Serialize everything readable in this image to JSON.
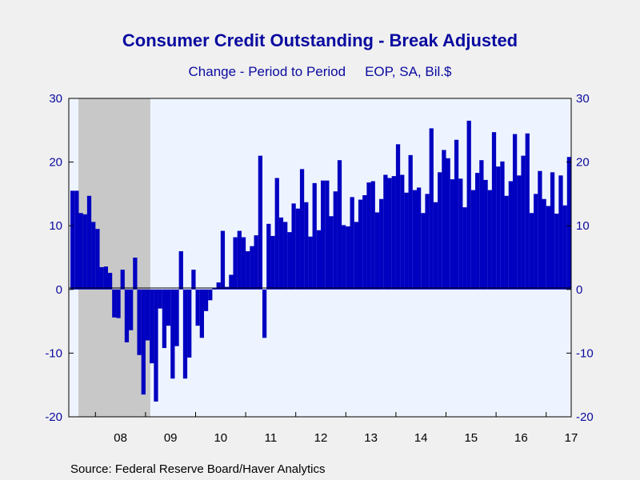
{
  "chart_data": {
    "type": "bar",
    "title": "Consumer Credit Outstanding - Break Adjusted",
    "subtitle_left": "Change - Period to Period",
    "subtitle_right": "EOP, SA, Bil.$",
    "source": "Source:  Federal Reserve Board/Haver Analytics",
    "ylim": [
      -20,
      30
    ],
    "y_ticks": [
      -20,
      -10,
      0,
      10,
      20,
      30
    ],
    "x_tick_labels": [
      "08",
      "09",
      "10",
      "11",
      "12",
      "13",
      "14",
      "15",
      "16",
      "17"
    ],
    "recession_shading": {
      "start_index": 0,
      "end_index": 18
    },
    "colors": {
      "bars": "#0000c0",
      "plot_bg": "#eef4ff",
      "recession": "#c8c8c8",
      "axis_text": "#0a0aa0"
    },
    "values": [
      15.5,
      15.5,
      12.0,
      11.8,
      14.7,
      10.6,
      9.5,
      3.5,
      3.6,
      2.6,
      -4.4,
      -4.5,
      3.1,
      -8.3,
      -6.4,
      5.0,
      -10.3,
      -16.5,
      -8.0,
      -11.6,
      -17.6,
      -3.0,
      -9.2,
      -5.7,
      -14.0,
      -8.9,
      6.0,
      -14.0,
      -10.7,
      3.1,
      -5.7,
      -7.6,
      -3.4,
      -1.7,
      0.2,
      1.1,
      9.2,
      0.4,
      2.3,
      8.2,
      9.2,
      8.2,
      6.0,
      6.8,
      8.5,
      21.0,
      -7.6,
      10.3,
      8.4,
      17.5,
      11.3,
      10.6,
      9.0,
      13.5,
      12.7,
      18.9,
      13.7,
      8.3,
      16.7,
      9.3,
      17.1,
      17.1,
      11.5,
      15.4,
      20.3,
      10.1,
      9.9,
      14.5,
      10.6,
      14.1,
      14.8,
      16.8,
      17.0,
      12.1,
      14.2,
      18.0,
      17.5,
      17.8,
      22.8,
      18.0,
      15.2,
      21.1,
      15.6,
      16.0,
      12.0,
      15.0,
      25.3,
      13.7,
      18.4,
      21.9,
      20.6,
      17.3,
      23.5,
      17.4,
      12.9,
      26.5,
      15.6,
      18.3,
      20.3,
      17.2,
      15.6,
      24.7,
      19.3,
      20.1,
      14.7,
      17.0,
      24.4,
      17.9,
      21.0,
      24.5,
      12.0,
      15.0,
      18.6,
      14.2,
      13.1,
      18.4,
      11.9,
      17.9,
      13.2,
      20.8
    ]
  }
}
